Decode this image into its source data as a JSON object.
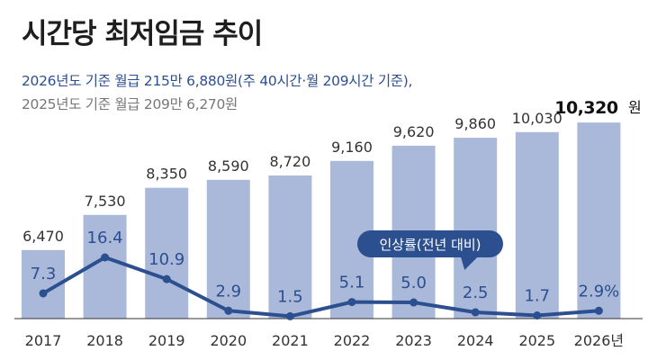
{
  "title": "시간당 최저임금 추이",
  "subtitle_line1": "2026년도 기준 월급 215만 6,880원(주 40시간·월 209시간 기준),",
  "subtitle_line2": "2025년도 기준 월급 209만 6,270원",
  "callout_label": "인상률(전년 대비)",
  "colors": {
    "bar": "#aab9da",
    "line": "#2c4f8f",
    "pct_text": "#2c4f8f",
    "value_text": "#333333",
    "highlight_text": "#111111",
    "axis": "#333333"
  },
  "chart_data": [
    {
      "type": "bar",
      "categories": [
        "2017",
        "2018",
        "2019",
        "2020",
        "2021",
        "2022",
        "2023",
        "2024",
        "2025",
        "2026"
      ],
      "category_labels": [
        "2017",
        "2018",
        "2019",
        "2020",
        "2021",
        "2022",
        "2023",
        "2024",
        "2025",
        "2026년"
      ],
      "values": [
        6470,
        7530,
        8350,
        8590,
        8720,
        9160,
        9620,
        9860,
        10030,
        10320
      ],
      "value_labels": [
        "6,470",
        "7,530",
        "8,350",
        "8,590",
        "8,720",
        "9,160",
        "9,620",
        "9,860",
        "10,030",
        "10,320"
      ],
      "highlight_unit": "원",
      "grid": false
    },
    {
      "type": "line",
      "name": "인상률(전년 대비)",
      "categories": [
        "2017",
        "2018",
        "2019",
        "2020",
        "2021",
        "2022",
        "2023",
        "2024",
        "2025",
        "2026"
      ],
      "values": [
        7.3,
        16.4,
        10.9,
        2.9,
        1.5,
        5.1,
        5.0,
        2.5,
        1.7,
        2.9
      ],
      "value_labels": [
        "7.3",
        "16.4",
        "10.9",
        "2.9",
        "1.5",
        "5.1",
        "5.0",
        "2.5",
        "1.7",
        "2.9%"
      ]
    }
  ]
}
